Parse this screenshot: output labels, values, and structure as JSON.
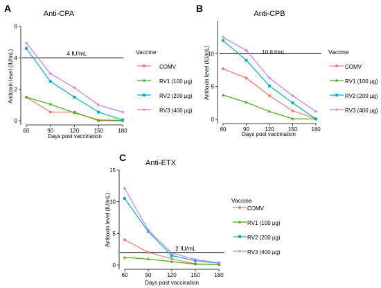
{
  "panels": [
    {
      "letter": "A",
      "chart_data": {
        "type": "line",
        "title": "Anti-CPA",
        "xlabel": "Days post vaccination",
        "ylabel": "Antitoxin level (IU/mL)",
        "x": [
          60,
          90,
          120,
          150,
          180
        ],
        "xlim": [
          60,
          180
        ],
        "ylim": [
          0,
          6
        ],
        "yticks": [
          0,
          2,
          4,
          6
        ],
        "reference_line": {
          "value": 4,
          "label": "4 IU/mL"
        },
        "legend_title": "Vaccine",
        "legend_position": "right",
        "series": [
          {
            "name": "COMV",
            "color": "#f8766d",
            "values": [
              1.5,
              0.55,
              0.55,
              0.0,
              0.0
            ]
          },
          {
            "name": "RV1 (100 µg)",
            "color": "#4ca80d",
            "values": [
              1.5,
              1.05,
              0.5,
              0.05,
              0.02
            ]
          },
          {
            "name": "RV2 (200 µg)",
            "color": "#00b4c2",
            "values": [
              4.6,
              2.5,
              1.5,
              0.55,
              0.05
            ]
          },
          {
            "name": "RV3 (400 µg)",
            "color": "#c77cff",
            "values": [
              4.95,
              3.0,
              2.1,
              1.0,
              0.55
            ]
          }
        ]
      }
    },
    {
      "letter": "B",
      "chart_data": {
        "type": "line",
        "title": "Anti-CPB",
        "xlabel": "Days post vaccination",
        "ylabel": "Antitoxin level (IU/mL)",
        "x": [
          60,
          90,
          120,
          150,
          180
        ],
        "xlim": [
          60,
          180
        ],
        "ylim": [
          0,
          15
        ],
        "yticks": [
          0,
          5,
          10
        ],
        "reference_line": {
          "value": 10,
          "label": "10 IU/mL"
        },
        "legend_title": "Vaccine",
        "legend_position": "right",
        "series": [
          {
            "name": "COMV",
            "color": "#f8766d",
            "values": [
              7.7,
              6.3,
              3.6,
              1.3,
              0.1
            ]
          },
          {
            "name": "RV1 (100 µg)",
            "color": "#4ca80d",
            "values": [
              3.7,
              2.6,
              1.2,
              0.1,
              0.05
            ]
          },
          {
            "name": "RV2 (200 µg)",
            "color": "#00b4c2",
            "values": [
              12.0,
              9.0,
              5.1,
              2.5,
              0.05
            ]
          },
          {
            "name": "RV3 (400 µg)",
            "color": "#c77cff",
            "values": [
              12.5,
              10.5,
              6.3,
              3.6,
              1.2
            ]
          }
        ]
      }
    },
    {
      "letter": "C",
      "chart_data": {
        "type": "line",
        "title": "Anti-ETX",
        "xlabel": "Days post vaccination",
        "ylabel": "Antitoxin level (IU/mL)",
        "x": [
          60,
          90,
          120,
          150,
          180
        ],
        "xlim": [
          60,
          180
        ],
        "ylim": [
          0,
          15
        ],
        "yticks": [
          0,
          5,
          10,
          15
        ],
        "reference_line": {
          "value": 2,
          "label": "2 IU/mL"
        },
        "legend_title": "Vaccine",
        "legend_position": "right",
        "series": [
          {
            "name": "COMV",
            "color": "#f8766d",
            "values": [
              4.0,
              2.0,
              1.0,
              0.2,
              0.1
            ]
          },
          {
            "name": "RV1 (100 µg)",
            "color": "#4ca80d",
            "values": [
              1.2,
              0.95,
              0.55,
              0.15,
              0.1
            ]
          },
          {
            "name": "RV2 (200 µg)",
            "color": "#00b4c2",
            "values": [
              10.5,
              5.3,
              1.5,
              0.7,
              0.3
            ]
          },
          {
            "name": "RV3 (400 µg)",
            "color": "#c77cff",
            "values": [
              12.1,
              5.5,
              1.9,
              0.9,
              0.35
            ]
          }
        ]
      }
    }
  ]
}
